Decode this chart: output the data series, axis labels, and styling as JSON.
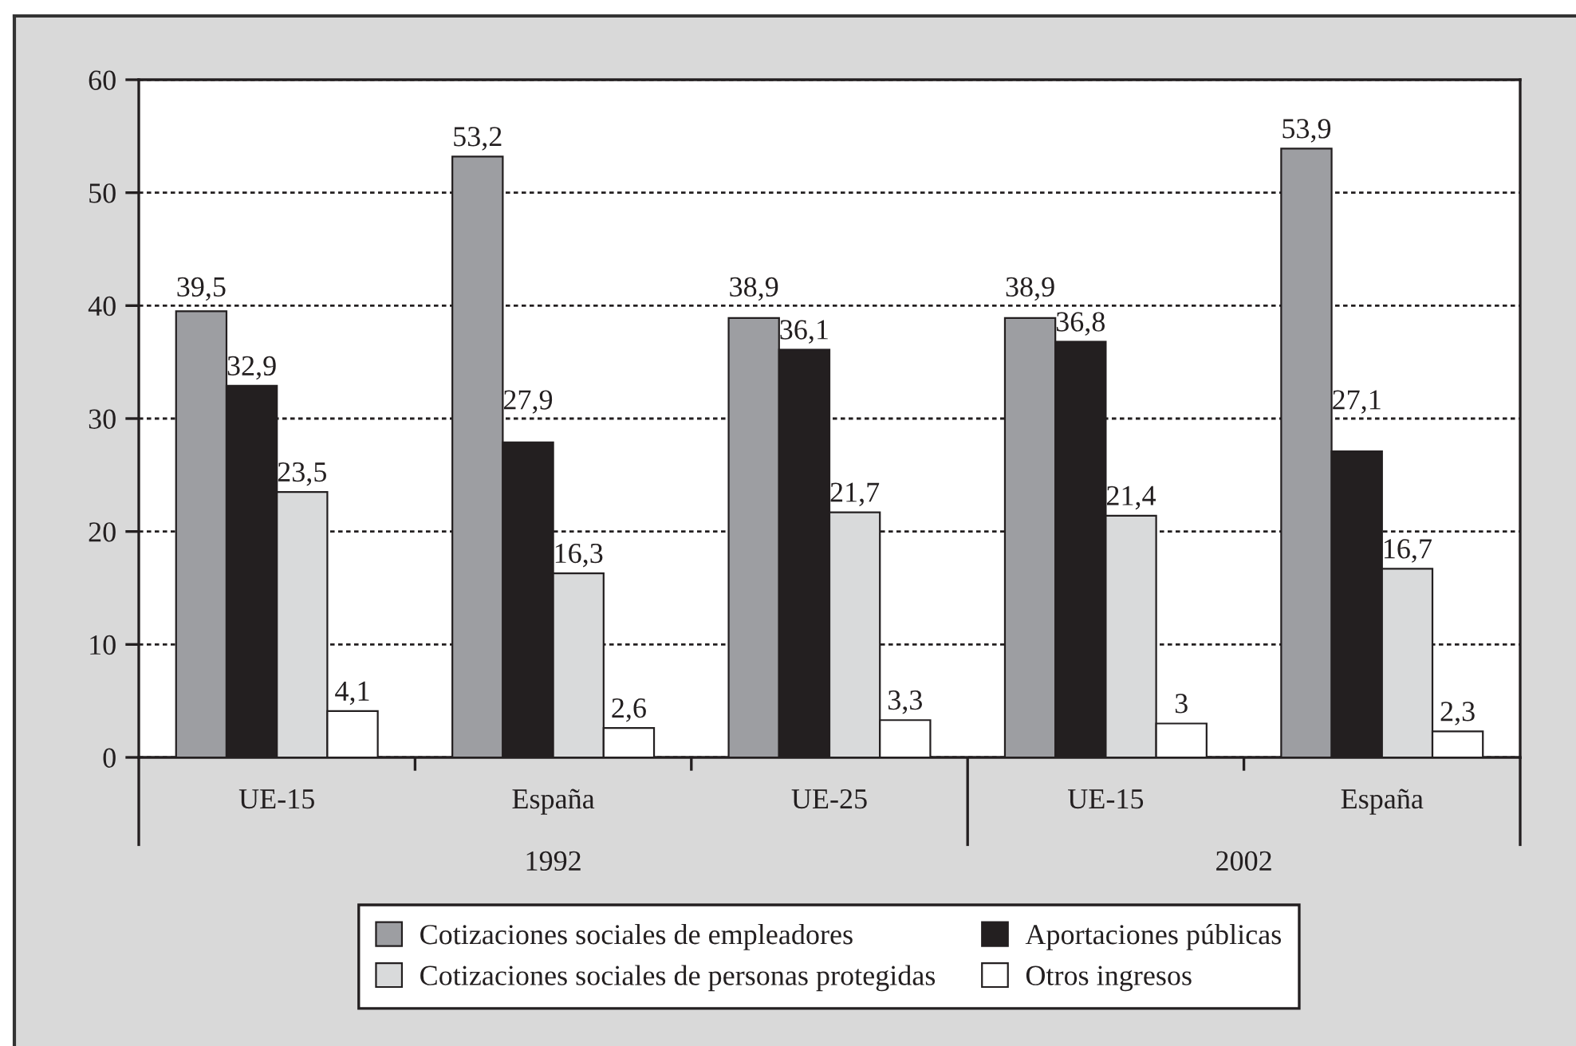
{
  "chart_data": {
    "type": "bar",
    "categories": [
      "UE-15",
      "España",
      "UE-25",
      "UE-15",
      "España"
    ],
    "series": [
      {
        "name": "Cotizaciones sociales de empleadores",
        "color": "#9d9ea2",
        "values": [
          39.5,
          53.2,
          38.9,
          38.9,
          53.9
        ],
        "value_labels": [
          "39,5",
          "53,2",
          "38,9",
          "38,9",
          "53,9"
        ]
      },
      {
        "name": "Aportaciones públicas",
        "color": "#231f20",
        "values": [
          32.9,
          27.9,
          36.1,
          36.8,
          27.1
        ],
        "value_labels": [
          "32,9",
          "27,9",
          "36,1",
          "36,8",
          "27,1"
        ]
      },
      {
        "name": "Cotizaciones sociales de personas protegidas",
        "color": "#d9dadb",
        "values": [
          23.5,
          16.3,
          21.7,
          21.4,
          16.7
        ],
        "value_labels": [
          "23,5",
          "16,3",
          "21,7",
          "21,4",
          "16,7"
        ]
      },
      {
        "name": "Otros ingresos",
        "color": "#ffffff",
        "values": [
          4.1,
          2.6,
          3.3,
          3,
          2.3
        ],
        "value_labels": [
          "4,1",
          "2,6",
          "3,3",
          "3",
          "2,3"
        ]
      }
    ],
    "ylim": [
      0,
      60
    ],
    "yticks": [
      0,
      10,
      20,
      30,
      40,
      50,
      60
    ],
    "grid": "y",
    "legend": "bottom",
    "annotations": [
      "1992",
      "2002"
    ]
  }
}
